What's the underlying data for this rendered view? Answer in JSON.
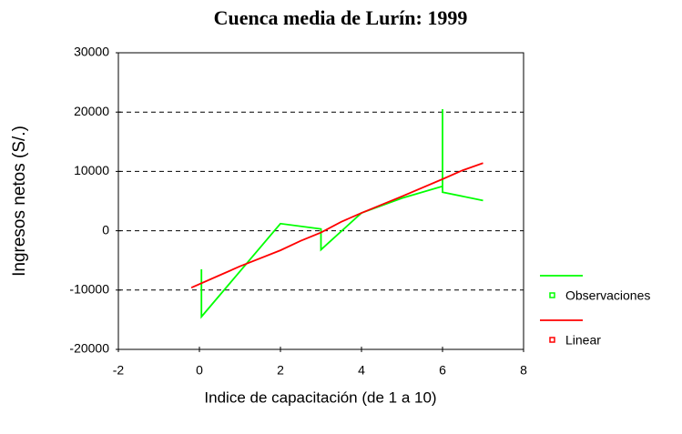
{
  "chart_data": {
    "type": "line",
    "title": "Cuenca media de Lurín: 1999",
    "x_label": "Indice de capacitación (de 1 a 10)",
    "y_label": "Ingresos netos (S/.)",
    "xlim": [
      -2,
      8
    ],
    "xticks": [
      -2,
      0,
      2,
      4,
      6,
      8
    ],
    "ylim": [
      -20000,
      30000
    ],
    "yticks": [
      -20000,
      -10000,
      0,
      10000,
      20000,
      30000
    ],
    "grid": true,
    "legend": "right",
    "series": [
      {
        "name": "Observaciones",
        "color": "#00ff00",
        "x": [
          0.05,
          0.05,
          2,
          3,
          3,
          4,
          5,
          6,
          6,
          6,
          7
        ],
        "values": [
          -6500,
          -14500,
          1200,
          300,
          -3200,
          3000,
          5500,
          7500,
          20500,
          6500,
          5100
        ]
      },
      {
        "name": "Linear",
        "color": "#ff0000",
        "x": [
          -0.2,
          0.5,
          1,
          2,
          2.5,
          3,
          3.5,
          4,
          5,
          6,
          6.5,
          7
        ],
        "values": [
          -9600,
          -7500,
          -6000,
          -3300,
          -1700,
          -300,
          1500,
          3000,
          5800,
          8700,
          10200,
          11400
        ]
      }
    ]
  }
}
